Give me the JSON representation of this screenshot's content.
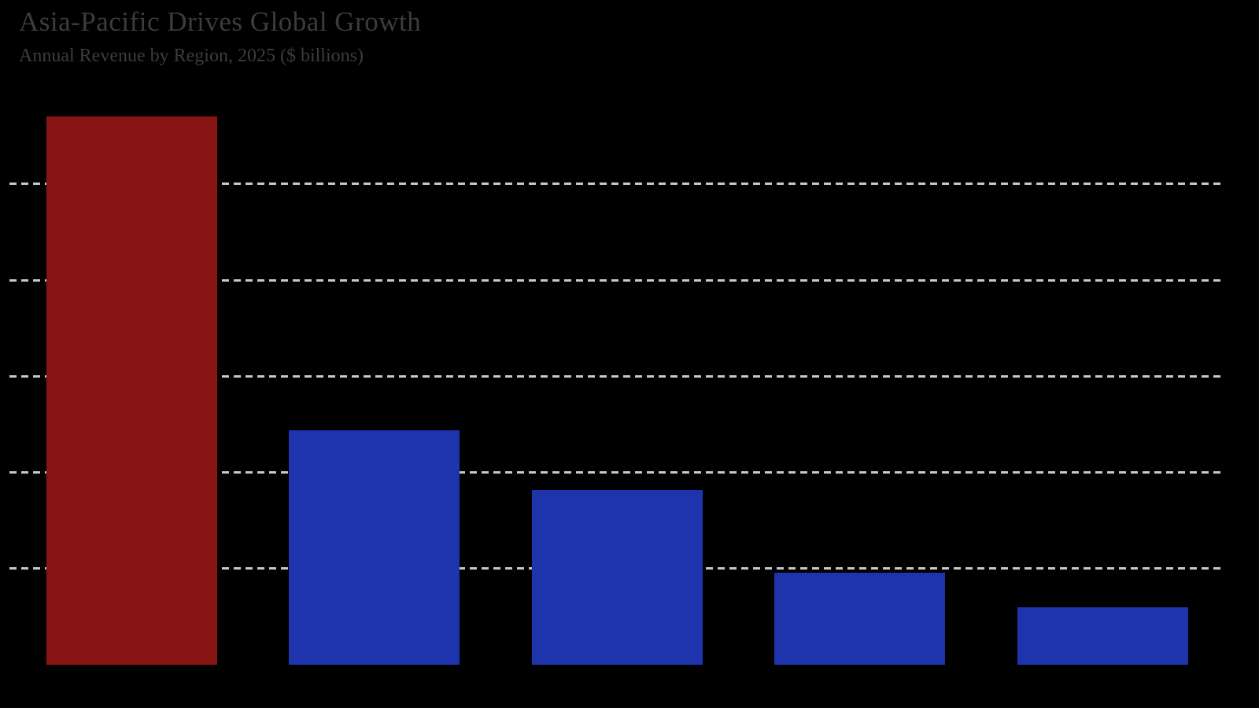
{
  "page": {
    "background_color": "#000000",
    "text_color": "#3C3C3C"
  },
  "header": {
    "title": "Asia-Pacific Drives Global Growth",
    "subtitle": "Annual Revenue by Region, 2025 ($ billions)"
  },
  "chart_data": {
    "type": "bar",
    "title": "Asia-Pacific Drives Global Growth",
    "subtitle": "Annual Revenue by Region, 2025 ($ billions)",
    "categories": [
      "",
      "",
      "",
      "",
      ""
    ],
    "values": [
      285,
      122,
      91,
      48,
      30
    ],
    "bar_colors": [
      "#881414",
      "#1D34AC",
      "#1D34AC",
      "#1D34AC",
      "#1D34AC"
    ],
    "highlight_color": "#881414",
    "base_color": "#1D34AC",
    "gridlines": {
      "values": [
        50,
        100,
        150,
        200,
        250
      ],
      "color": "#C8C8C8",
      "style": "dashed"
    },
    "ylim": [
      0,
      300
    ],
    "xlabel": "",
    "ylabel": "",
    "x_tick_labels_visible": false,
    "y_tick_labels_visible": false,
    "legend_visible": false
  }
}
